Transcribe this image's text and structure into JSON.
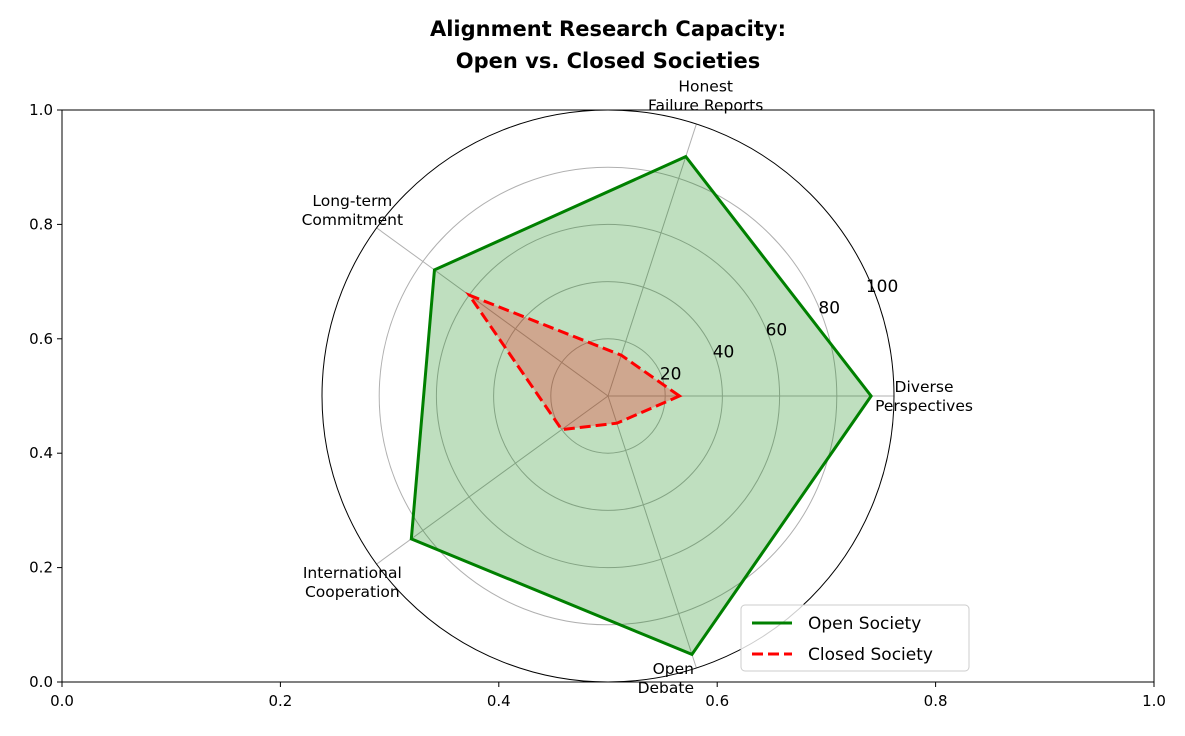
{
  "chart_data": {
    "type": "radar",
    "title_lines": [
      "Alignment Research Capacity:",
      "Open vs. Closed Societies"
    ],
    "categories": [
      [
        "Diverse",
        "Perspectives"
      ],
      [
        "Honest",
        "Failure Reports"
      ],
      [
        "Long-term",
        "Commitment"
      ],
      [
        "International",
        "Cooperation"
      ],
      [
        "Open",
        "Debate"
      ]
    ],
    "radial_ticks": [
      "20",
      "40",
      "60",
      "80",
      "100"
    ],
    "radial_tick_values": [
      20,
      40,
      60,
      80,
      100
    ],
    "rlim": [
      0,
      100
    ],
    "series": [
      {
        "name": "Open Society",
        "values": [
          92,
          88,
          75,
          85,
          95
        ],
        "color": "#008000",
        "style": "solid",
        "fill": "#008000"
      },
      {
        "name": "Closed Society",
        "values": [
          25,
          15,
          60,
          20,
          10
        ],
        "color": "#ff0000",
        "style": "dashed",
        "fill": "#ff0000"
      }
    ],
    "cartesian_axes": {
      "xlim": [
        0,
        1
      ],
      "ylim": [
        0,
        1
      ],
      "xticks": [
        "0.0",
        "0.2",
        "0.4",
        "0.6",
        "0.8",
        "1.0"
      ],
      "yticks": [
        "0.0",
        "0.2",
        "0.4",
        "0.6",
        "0.8",
        "1.0"
      ]
    },
    "grid": true,
    "legend_placement": "lower-right"
  }
}
